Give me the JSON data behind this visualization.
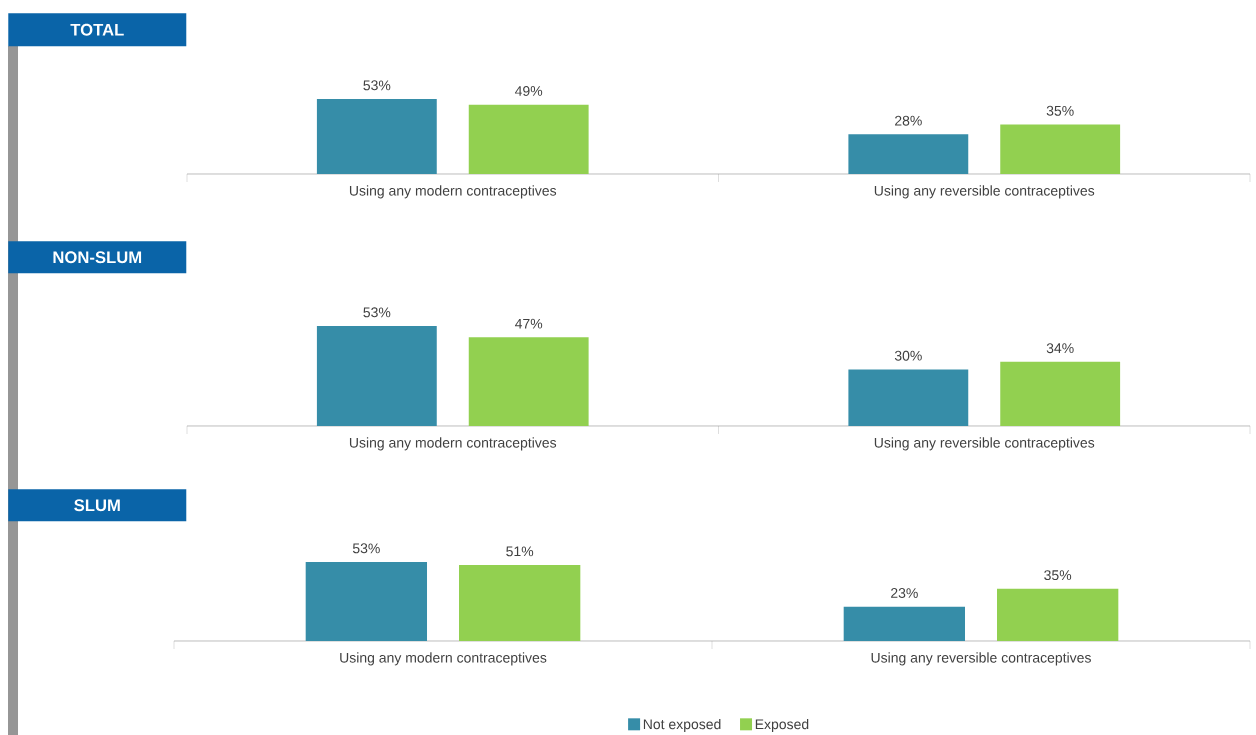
{
  "chart_data": [
    {
      "type": "bar",
      "title": "TOTAL",
      "categories": [
        "Using any modern contraceptives",
        "Using any reversible contraceptives"
      ],
      "series": [
        {
          "color": "#368da8",
          "values": [
            53,
            28
          ],
          "value_labels": [
            "53%",
            "28%"
          ]
        },
        {
          "color": "#92d050",
          "values": [
            49,
            35
          ],
          "value_labels": [
            "49%",
            "35%"
          ]
        }
      ]
    },
    {
      "type": "bar",
      "title": "NON-SLUM",
      "categories": [
        "Using any modern contraceptives",
        "Using any reversible contraceptives"
      ],
      "series": [
        {
          "color": "#368da8",
          "values": [
            53,
            30
          ],
          "value_labels": [
            "53%",
            "30%"
          ]
        },
        {
          "color": "#92d050",
          "values": [
            47,
            34
          ],
          "value_labels": [
            "47%",
            "34%"
          ]
        }
      ]
    },
    {
      "type": "bar",
      "title": "SLUM",
      "categories": [
        "Using any modern contraceptives",
        "Using any reversible contraceptives"
      ],
      "legend": "bottom",
      "series": [
        {
          "name": "Not exposed",
          "color": "#368da8",
          "values": [
            53,
            23
          ],
          "value_labels": [
            "53%",
            "23%"
          ]
        },
        {
          "name": "Exposed",
          "color": "#92d050",
          "values": [
            51,
            35
          ],
          "value_labels": [
            "51%",
            "35%"
          ]
        }
      ]
    }
  ]
}
